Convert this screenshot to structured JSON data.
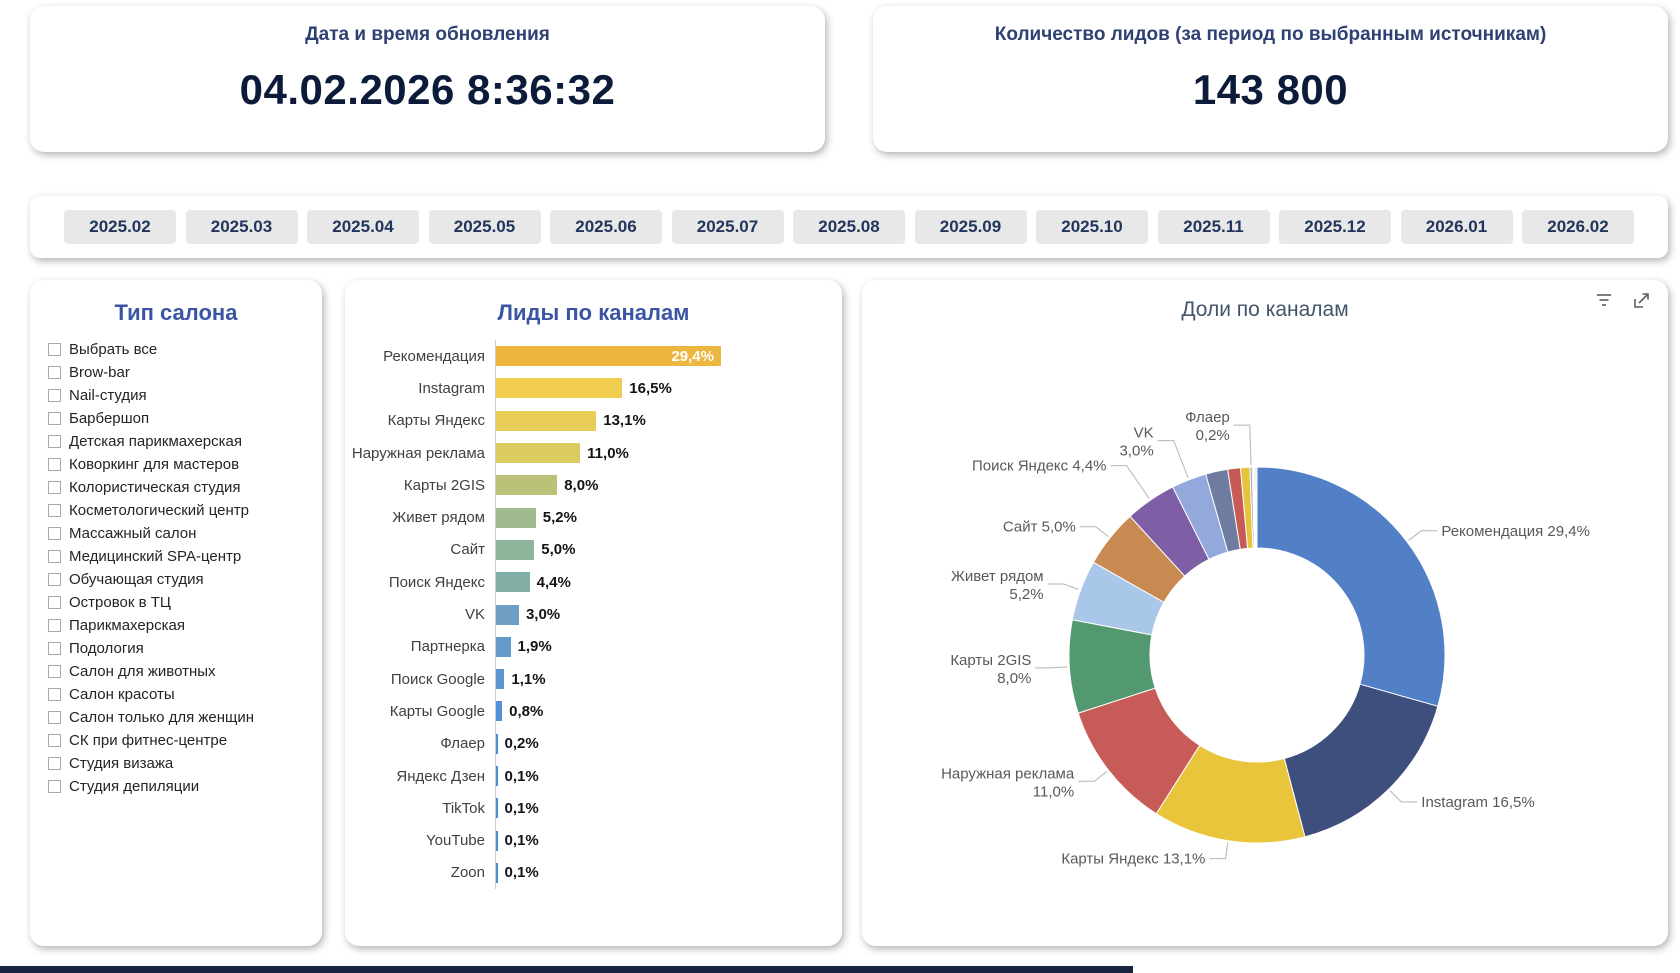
{
  "header_cards": {
    "update": {
      "title": "Дата и время обновления",
      "value": "04.02.2026 8:36:32"
    },
    "leads": {
      "title": "Количество лидов (за период по выбранным источникам)",
      "value": "143 800"
    }
  },
  "months": [
    "2025.02",
    "2025.03",
    "2025.04",
    "2025.05",
    "2025.06",
    "2025.07",
    "2025.08",
    "2025.09",
    "2025.10",
    "2025.11",
    "2025.12",
    "2026.01",
    "2026.02"
  ],
  "salon_filter": {
    "title": "Тип салона",
    "items": [
      "Выбрать все",
      "Brow-bar",
      "Nail-студия",
      "Барбершоп",
      "Детская парикмахерская",
      "Коворкинг для мастеров",
      "Колористическая студия",
      "Косметологический центр",
      "Массажный салон",
      "Медицинский SPA-центр",
      "Обучающая студия",
      "Островок в ТЦ",
      "Парикмахерская",
      "Подология",
      "Салон для животных",
      "Салон красоты",
      "Салон только для женщин",
      "СК при фитнес-центре",
      "Студия визажа",
      "Студия депиляции"
    ]
  },
  "chart_data": [
    {
      "type": "bar",
      "title": "Лиды по каналам",
      "orientation": "horizontal",
      "categories": [
        "Рекомендация",
        "Instagram",
        "Карты Яндекс",
        "Наружная реклама",
        "Карты 2GIS",
        "Живет рядом",
        "Сайт",
        "Поиск Яндекс",
        "VK",
        "Партнерка",
        "Поиск Google",
        "Карты Google",
        "Флаер",
        "Яндекс Дзен",
        "TikTok",
        "YouTube",
        "Zoon"
      ],
      "values": [
        29.4,
        16.5,
        13.1,
        11.0,
        8.0,
        5.2,
        5.0,
        4.4,
        3.0,
        1.9,
        1.1,
        0.8,
        0.2,
        0.1,
        0.1,
        0.1,
        0.1
      ],
      "value_labels": [
        "29,4%",
        "16,5%",
        "13,1%",
        "11,0%",
        "8,0%",
        "5,2%",
        "5,0%",
        "4,4%",
        "3,0%",
        "1,9%",
        "1,1%",
        "0,8%",
        "0,2%",
        "0,1%",
        "0,1%",
        "0,1%",
        "0,1%"
      ],
      "colors": [
        "#ECB63F",
        "#F0CD4F",
        "#E8CE58",
        "#DCCB60",
        "#BCC178",
        "#9FBB8F",
        "#8EB59B",
        "#82AFA5",
        "#6F9FC5",
        "#659ACD",
        "#5D94D2",
        "#5690D6",
        "#508CDA",
        "#4F8AD8",
        "#4F8AD8",
        "#4F8AD8",
        "#4F8AD8"
      ],
      "xlim": [
        0,
        30
      ],
      "first_label_inside": true
    },
    {
      "type": "pie",
      "title": "Доли по каналам",
      "donut": true,
      "legend": "none",
      "categories": [
        "Рекомендация",
        "Instagram",
        "Карты Яндекс",
        "Наружная реклама",
        "Карты 2GIS",
        "Живет рядом",
        "Сайт",
        "Поиск Яндекс",
        "VK",
        "Партнерка",
        "Поиск Google",
        "Карты Google",
        "Флаер",
        "Яндекс Дзен",
        "TikTok",
        "YouTube",
        "Zoon"
      ],
      "values": [
        29.4,
        16.5,
        13.1,
        11.0,
        8.0,
        5.2,
        5.0,
        4.4,
        3.0,
        1.9,
        1.1,
        0.8,
        0.2,
        0.1,
        0.1,
        0.1,
        0.1
      ],
      "value_labels": [
        "29,4%",
        "16,5%",
        "13,1%",
        "11,0%",
        "8,0%",
        "5,2%",
        "5,0%",
        "4,4%",
        "3,0%",
        "1,9%",
        "1,1%",
        "0,8%",
        "0,2%",
        "0,1%",
        "0,1%",
        "0,1%",
        "0,1%"
      ],
      "colors": [
        "#5280C6",
        "#3E4E7D",
        "#E9C53C",
        "#C65B57",
        "#52996F",
        "#A9C7E8",
        "#C98A52",
        "#7E5FA5",
        "#93A9DC",
        "#6E7CA0",
        "#C75A54",
        "#E6C33C",
        "#9DA7B8",
        "#5A9BD5",
        "#7F7F7F",
        "#C0504D",
        "#8FAADC"
      ],
      "callouts": [
        "single",
        "single",
        "single",
        "stacked",
        "stacked",
        "stacked",
        "single",
        "single",
        "stacked",
        "",
        "",
        "",
        "stacked",
        "",
        "",
        "",
        ""
      ]
    }
  ]
}
